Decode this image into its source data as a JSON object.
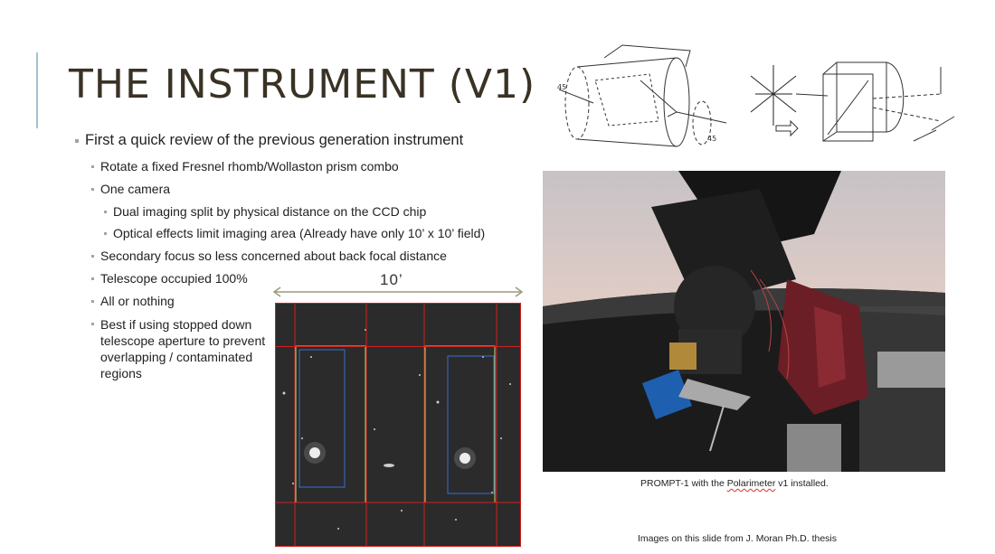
{
  "slide": {
    "title": "THE INSTRUMENT (V1)",
    "accent_color": "#9fc3d1",
    "title_color": "#3a3224"
  },
  "bullets": {
    "main": "First a quick review of the previous generation instrument",
    "rotate": "Rotate a fixed Fresnel rhomb/Wollaston prism combo",
    "camera": "One camera",
    "dual": "Dual imaging split by physical distance on the CCD chip",
    "optical": "Optical effects limit imaging area (Already have only 10’ x 10’ field)",
    "secondary": "Secondary focus so less concerned about back focal distance",
    "telescope": "Telescope occupied 100%",
    "all": "All or nothing",
    "best": "Best if using stopped down telescope aperture to prevent overlapping / contaminated regions"
  },
  "figure": {
    "field_size_label": "10’"
  },
  "photo": {
    "caption_prefix": "PROMPT-1 with the ",
    "caption_word": "Polarimeter",
    "caption_suffix": " v1 installed."
  },
  "credit": "Images on this slide from J. Moran Ph.D. thesis"
}
